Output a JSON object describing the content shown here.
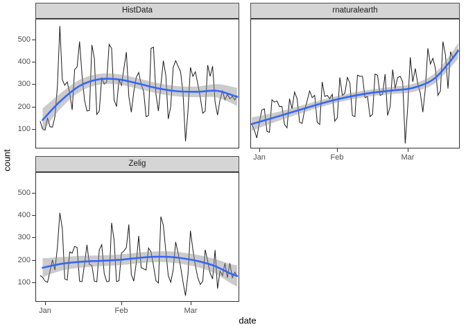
{
  "figure": {
    "ylabel": "count",
    "xlabel": "date",
    "facets": [
      "HistData",
      "rnaturalearth",
      "Zelig"
    ],
    "colors": {
      "background": "#FFFFFF",
      "panel_background": "#FFFFFF",
      "panel_border": "#2E2E2E",
      "strip_fill": "#D5D5D5",
      "strip_border": "#4D4D4D",
      "observed_line": "#1A1A1A",
      "smooth_line": "#3366FF",
      "ribbon": "#8C8C8C",
      "ribbon_opacity": 0.45,
      "axis_text": "#4D4D4D",
      "tick_mark": "#333333"
    }
  },
  "chart_data": [
    {
      "type": "line",
      "facet": "HistData",
      "xlabel": "date",
      "ylabel": "count",
      "x_unit": "days since Jan 1",
      "x_ticks": [
        {
          "label": "Jan",
          "day": 0
        },
        {
          "label": "Feb",
          "day": 31
        },
        {
          "label": "Mar",
          "day": 59
        }
      ],
      "y_ticks": [
        100,
        200,
        300,
        400,
        500
      ],
      "ylim": [
        13,
        592
      ],
      "grid": false,
      "series": [
        {
          "name": "daily count",
          "kind": "raw",
          "start_day": -2,
          "step_days": 1,
          "values": [
            135,
            100,
            95,
            150,
            110,
            108,
            155,
            290,
            560,
            320,
            295,
            310,
            260,
            185,
            365,
            377,
            490,
            340,
            230,
            180,
            183,
            475,
            415,
            165,
            180,
            330,
            300,
            310,
            478,
            460,
            230,
            200,
            320,
            295,
            370,
            443,
            245,
            175,
            265,
            330,
            352,
            300,
            268,
            155,
            160,
            460,
            465,
            255,
            180,
            295,
            405,
            340,
            145,
            200,
            375,
            405,
            380,
            355,
            260,
            45,
            180,
            375,
            335,
            355,
            300,
            240,
            170,
            180,
            385,
            335,
            380,
            220,
            162,
            230,
            270,
            230,
            255,
            235,
            245,
            230,
            250
          ]
        },
        {
          "name": "loess smooth",
          "kind": "smooth",
          "days": [
            -1,
            6,
            14,
            22,
            30,
            38,
            46,
            54,
            62,
            70,
            78
          ],
          "values": [
            140,
            222,
            292,
            322,
            321,
            302,
            281,
            268,
            266,
            270,
            243
          ],
          "ci_half_width": [
            52,
            35,
            27,
            24,
            23,
            23,
            23,
            23,
            24,
            30,
            40
          ]
        }
      ]
    },
    {
      "type": "line",
      "facet": "rnaturalearth",
      "xlabel": "date",
      "ylabel": "count",
      "x_unit": "days since Jan 1",
      "x_ticks": [
        {
          "label": "Jan",
          "day": 0
        },
        {
          "label": "Feb",
          "day": 31
        },
        {
          "label": "Mar",
          "day": 59
        }
      ],
      "y_ticks": [
        100,
        200,
        300,
        400,
        500
      ],
      "ylim": [
        13,
        592
      ],
      "grid": false,
      "series": [
        {
          "name": "daily count",
          "kind": "raw",
          "start_day": -3,
          "step_days": 1,
          "values": [
            122,
            95,
            60,
            130,
            185,
            190,
            90,
            85,
            230,
            220,
            225,
            200,
            200,
            120,
            105,
            235,
            190,
            265,
            235,
            130,
            125,
            185,
            225,
            270,
            240,
            250,
            130,
            120,
            310,
            245,
            250,
            235,
            255,
            135,
            150,
            330,
            250,
            260,
            330,
            305,
            160,
            155,
            340,
            335,
            335,
            240,
            245,
            155,
            165,
            345,
            340,
            250,
            255,
            345,
            160,
            200,
            365,
            280,
            330,
            335,
            310,
            35,
            200,
            420,
            310,
            370,
            300,
            260,
            175,
            280,
            460,
            390,
            415,
            370,
            250,
            270,
            490,
            430,
            280,
            445,
            415,
            430,
            455
          ]
        },
        {
          "name": "loess smooth",
          "kind": "smooth",
          "days": [
            -3,
            5,
            13,
            21,
            29,
            37,
            45,
            53,
            61,
            69,
            75,
            79
          ],
          "values": [
            122,
            148,
            175,
            202,
            227,
            247,
            262,
            272,
            283,
            320,
            390,
            448
          ],
          "ci_half_width": [
            30,
            22,
            18,
            16,
            15,
            15,
            15,
            16,
            18,
            22,
            28,
            35
          ]
        }
      ]
    },
    {
      "type": "line",
      "facet": "Zelig",
      "xlabel": "date",
      "ylabel": "count",
      "x_unit": "days since Jan 1",
      "x_ticks": [
        {
          "label": "Jan",
          "day": 0
        },
        {
          "label": "Feb",
          "day": 31
        },
        {
          "label": "Mar",
          "day": 59
        }
      ],
      "y_ticks": [
        100,
        200,
        300,
        400,
        500
      ],
      "ylim": [
        13,
        592
      ],
      "grid": false,
      "series": [
        {
          "name": "daily count",
          "kind": "raw",
          "start_day": -2,
          "step_days": 1,
          "values": [
            130,
            122,
            105,
            100,
            150,
            200,
            155,
            255,
            410,
            340,
            115,
            110,
            235,
            230,
            260,
            255,
            105,
            103,
            180,
            267,
            180,
            175,
            105,
            102,
            245,
            268,
            140,
            103,
            105,
            365,
            290,
            103,
            107,
            230,
            240,
            255,
            358,
            135,
            105,
            185,
            307,
            165,
            160,
            155,
            253,
            235,
            175,
            107,
            97,
            393,
            355,
            240,
            130,
            100,
            155,
            280,
            230,
            170,
            100,
            40,
            135,
            330,
            245,
            175,
            120,
            90,
            105,
            245,
            195,
            140,
            115,
            244,
            72,
            150,
            130,
            185,
            120,
            185,
            120,
            145,
            125
          ]
        },
        {
          "name": "loess smooth",
          "kind": "smooth",
          "days": [
            -1,
            7,
            15,
            23,
            31,
            39,
            45,
            51,
            57,
            63,
            69,
            75,
            78
          ],
          "values": [
            165,
            183,
            192,
            196,
            201,
            210,
            214,
            213,
            205,
            192,
            172,
            140,
            128
          ],
          "ci_half_width": [
            42,
            30,
            26,
            24,
            24,
            24,
            24,
            25,
            26,
            28,
            32,
            42,
            48
          ]
        }
      ]
    }
  ]
}
